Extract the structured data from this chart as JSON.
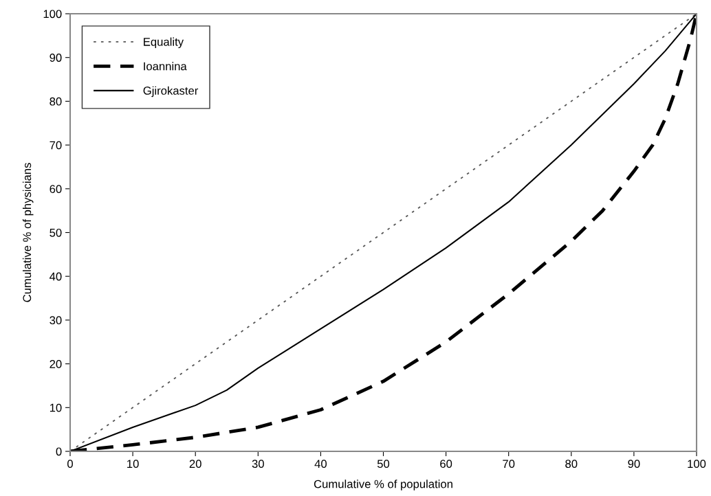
{
  "chart_data": {
    "type": "line",
    "xlabel": "Cumulative % of population",
    "ylabel": "Cumulative % of physicians",
    "xlim": [
      0,
      100
    ],
    "ylim": [
      0,
      100
    ],
    "xticks": [
      0,
      10,
      20,
      30,
      40,
      50,
      60,
      70,
      80,
      90,
      100
    ],
    "yticks": [
      0,
      10,
      20,
      30,
      40,
      50,
      60,
      70,
      80,
      90,
      100
    ],
    "grid": false,
    "legend": "top left",
    "marker": "none",
    "series": [
      {
        "name": "Equality",
        "color": "#555555",
        "line_style": "dotted",
        "x": [
          0,
          100
        ],
        "values": [
          0,
          100
        ]
      },
      {
        "name": "Ioannina",
        "color": "#000000",
        "line_style": "dashed",
        "x": [
          0,
          10,
          20,
          30,
          40,
          50,
          60,
          70,
          80,
          85,
          90,
          93,
          95,
          97,
          98,
          99,
          100
        ],
        "values": [
          0,
          1.5,
          3.2,
          5.5,
          9.5,
          16,
          25,
          36,
          48,
          55,
          64,
          70,
          76,
          84,
          89,
          94,
          100
        ]
      },
      {
        "name": "Gjirokaster",
        "color": "#000000",
        "line_style": "solid",
        "x": [
          0,
          10,
          20,
          25,
          30,
          40,
          50,
          60,
          70,
          80,
          90,
          95,
          100
        ],
        "values": [
          0,
          5.5,
          10.5,
          14,
          19,
          28,
          37,
          46.5,
          57,
          70,
          84,
          91.5,
          100
        ]
      }
    ]
  }
}
